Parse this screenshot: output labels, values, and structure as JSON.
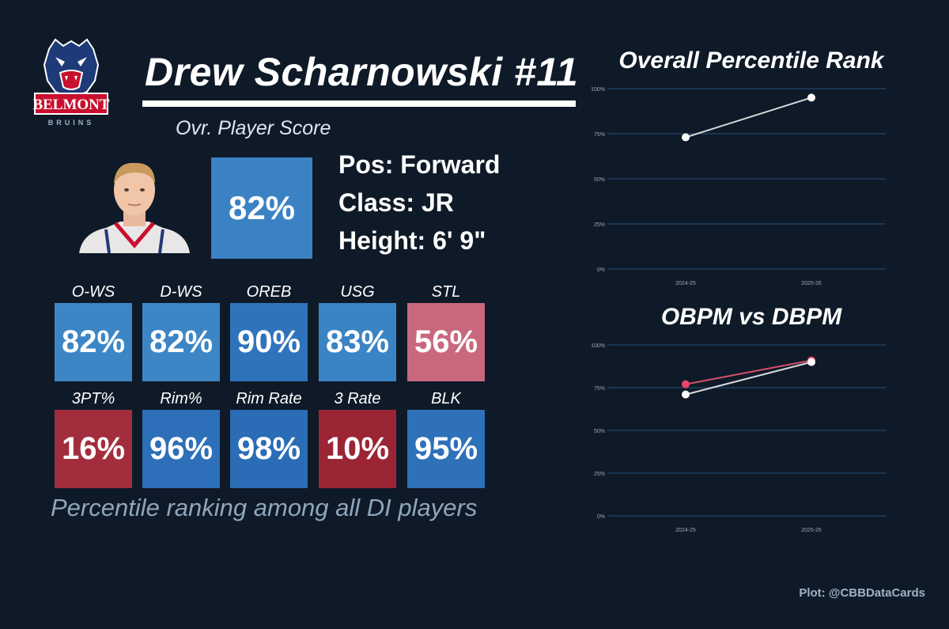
{
  "header": {
    "player_name": "Drew Scharnowski #11",
    "ovr_label": "Ovr. Player Score",
    "ovr_value": "82%",
    "ovr_color": "#3b82c4"
  },
  "logo": {
    "word": "BELMONT",
    "sub": "BRUINS"
  },
  "info": {
    "pos": "Pos: Forward",
    "class": "Class: JR",
    "height": "Height: 6' 9\""
  },
  "stats_row1": [
    {
      "label": "O-WS",
      "value": "82%",
      "color": "#3d86c6"
    },
    {
      "label": "D-WS",
      "value": "82%",
      "color": "#3d86c6"
    },
    {
      "label": "OREB",
      "value": "90%",
      "color": "#2f74bb"
    },
    {
      "label": "USG",
      "value": "83%",
      "color": "#3a84c5"
    },
    {
      "label": "STL",
      "value": "56%",
      "color": "#c9687d"
    }
  ],
  "stats_row2": [
    {
      "label": "3PT%",
      "value": "16%",
      "color": "#a22e3d"
    },
    {
      "label": "Rim%",
      "value": "96%",
      "color": "#2d6fb8"
    },
    {
      "label": "Rim Rate",
      "value": "98%",
      "color": "#2a6cb6"
    },
    {
      "label": "3 Rate",
      "value": "10%",
      "color": "#9b2535"
    },
    {
      "label": "BLK",
      "value": "95%",
      "color": "#2e71b9"
    }
  ],
  "footnote": "Percentile ranking among all DI players",
  "credit": "Plot: @CBBDataCards",
  "chart_data": [
    {
      "type": "line",
      "title": "Overall Percentile Rank",
      "x": [
        "2024-25",
        "2025-26"
      ],
      "ylim": [
        0,
        100
      ],
      "yticks": [
        "0%",
        "25%",
        "50%",
        "75%",
        "100%"
      ],
      "grid": true,
      "series": [
        {
          "values": [
            73,
            95
          ],
          "color": "#d9d9d9",
          "point_color": "#ffffff"
        }
      ]
    },
    {
      "type": "line",
      "title": "OBPM vs DBPM",
      "x": [
        "2024-25",
        "2025-26"
      ],
      "ylim": [
        0,
        100
      ],
      "yticks": [
        "0%",
        "25%",
        "50%",
        "75%",
        "100%"
      ],
      "grid": true,
      "series": [
        {
          "values": [
            77,
            91
          ],
          "color": "#d9506e",
          "point_color": "#e8466a"
        },
        {
          "values": [
            71,
            90
          ],
          "color": "#d9d9d9",
          "point_color": "#ffffff"
        }
      ]
    }
  ]
}
